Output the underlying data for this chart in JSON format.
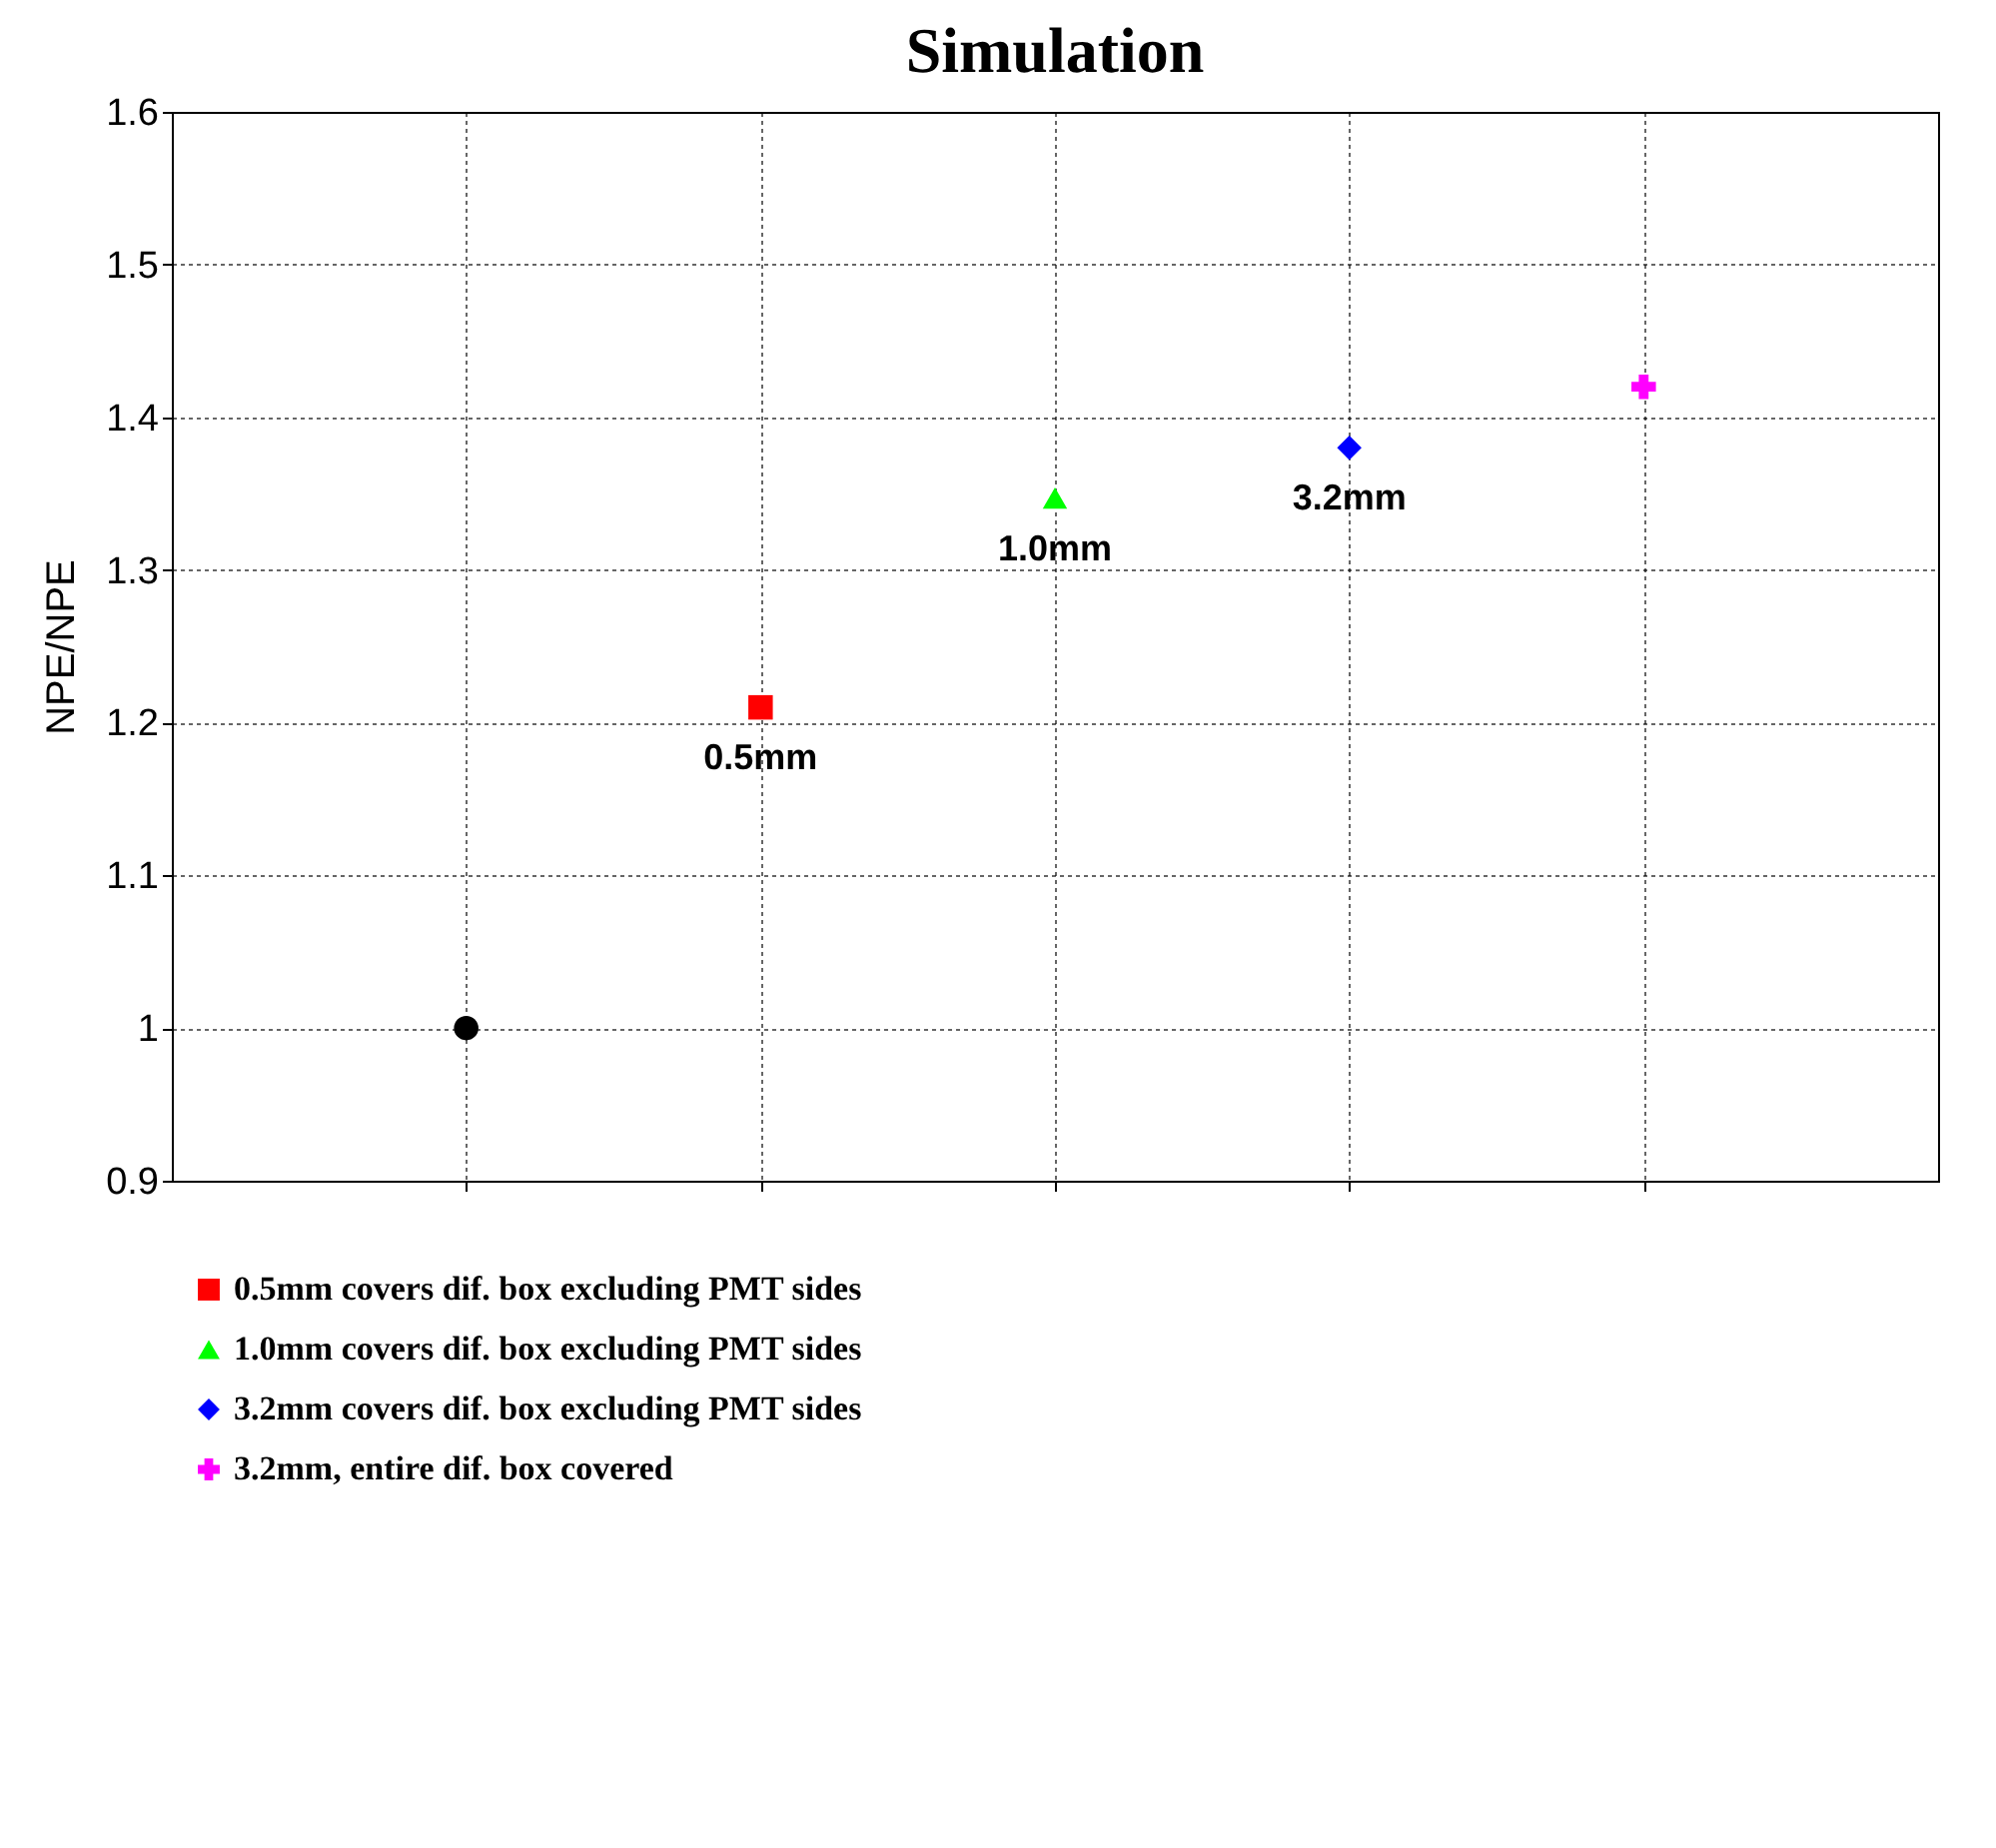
{
  "chart_data": {
    "type": "scatter",
    "title": "Simulation",
    "ylabel": "NPE/NPE",
    "categories": [
      null,
      null,
      null,
      null,
      null
    ],
    "ylim": [
      0.9,
      1.6
    ],
    "yticks": [
      0.9,
      1,
      1.1,
      1.2,
      1.3,
      1.4,
      1.5,
      1.6
    ],
    "grid": true,
    "legend": "bottom",
    "annotations": [
      {
        "text": "0.5mm",
        "y": 1.21
      },
      {
        "text": "1.0mm",
        "y": 1.347
      },
      {
        "text": "3.2mm",
        "y": 1.38
      }
    ],
    "series": [
      {
        "color": "#000000",
        "marker": "circle",
        "values": [
          1.0,
          null,
          null,
          null,
          null
        ]
      },
      {
        "name": "0.5mm covers dif. box excluding PMT sides",
        "color": "#ff0000",
        "marker": "square",
        "values": [
          null,
          1.21,
          null,
          null,
          null
        ]
      },
      {
        "name": "1.0mm covers dif. box excluding PMT sides",
        "color": "#00ff00",
        "marker": "triangle",
        "values": [
          null,
          null,
          1.347,
          null,
          null
        ]
      },
      {
        "name": "3.2mm covers dif. box excluding PMT sides",
        "color": "#0000ff",
        "marker": "diamond",
        "values": [
          null,
          null,
          null,
          1.38,
          null
        ]
      },
      {
        "name": "3.2mm, entire dif. box covered",
        "color": "#ff00ff",
        "marker": "cross",
        "values": [
          null,
          null,
          null,
          null,
          1.42
        ]
      }
    ]
  }
}
